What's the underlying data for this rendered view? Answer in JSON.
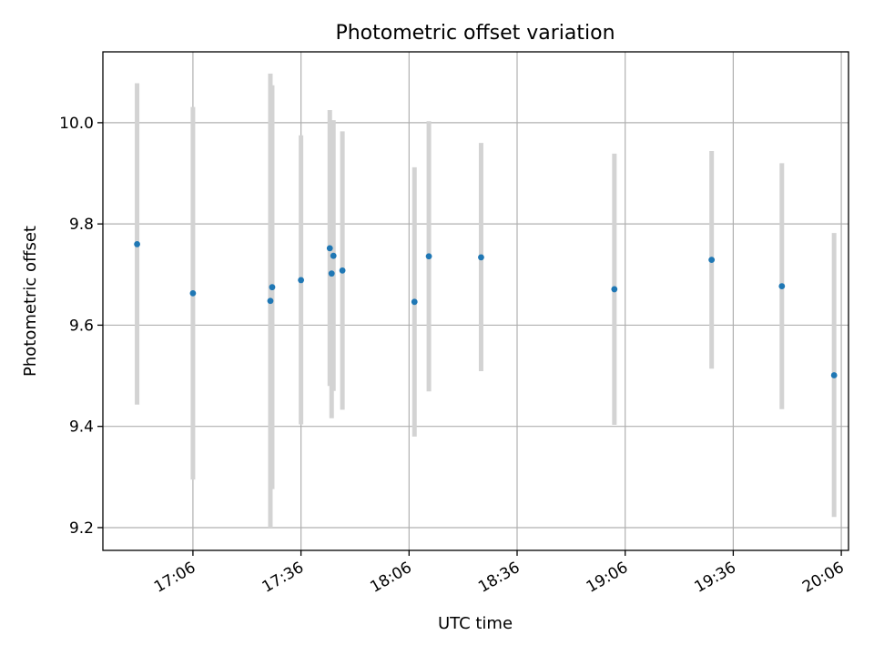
{
  "chart_data": {
    "type": "scatter",
    "title": "Photometric offset variation",
    "xlabel": "UTC time",
    "ylabel": "Photometric offset",
    "x_axis_type": "time",
    "xlim": [
      "16:41",
      "20:08"
    ],
    "ylim": [
      9.155,
      10.14
    ],
    "grid": true,
    "x_ticks": [
      "17:06",
      "17:36",
      "18:06",
      "18:36",
      "19:06",
      "19:36",
      "20:06"
    ],
    "y_ticks": [
      "9.2",
      "9.4",
      "9.6",
      "9.8",
      "10.0"
    ],
    "colors": {
      "point": "#1f77b4",
      "error_bar": "#d3d3d3",
      "grid": "#b0b0b0"
    },
    "points": [
      {
        "x": "16:50.5",
        "y": 9.76,
        "yerr_low": 9.443,
        "yerr_high": 10.078
      },
      {
        "x": "17:06.0",
        "y": 9.663,
        "yerr_low": 9.295,
        "yerr_high": 10.031
      },
      {
        "x": "17:27.5",
        "y": 9.648,
        "yerr_low": 9.2,
        "yerr_high": 10.097
      },
      {
        "x": "17:28.0",
        "y": 9.675,
        "yerr_low": 9.276,
        "yerr_high": 10.074
      },
      {
        "x": "17:36.0",
        "y": 9.689,
        "yerr_low": 9.404,
        "yerr_high": 9.975
      },
      {
        "x": "17:44.0",
        "y": 9.752,
        "yerr_low": 9.48,
        "yerr_high": 10.025
      },
      {
        "x": "17:44.5",
        "y": 9.702,
        "yerr_low": 9.416,
        "yerr_high": 9.989
      },
      {
        "x": "17:45.0",
        "y": 9.737,
        "yerr_low": 9.47,
        "yerr_high": 10.005
      },
      {
        "x": "17:47.5",
        "y": 9.708,
        "yerr_low": 9.433,
        "yerr_high": 9.983
      },
      {
        "x": "18:07.5",
        "y": 9.646,
        "yerr_low": 9.38,
        "yerr_high": 9.912
      },
      {
        "x": "18:11.5",
        "y": 9.736,
        "yerr_low": 9.469,
        "yerr_high": 10.003
      },
      {
        "x": "18:26.0",
        "y": 9.734,
        "yerr_low": 9.509,
        "yerr_high": 9.96
      },
      {
        "x": "19:03.0",
        "y": 9.671,
        "yerr_low": 9.403,
        "yerr_high": 9.939
      },
      {
        "x": "19:30.0",
        "y": 9.729,
        "yerr_low": 9.514,
        "yerr_high": 9.944
      },
      {
        "x": "19:49.5",
        "y": 9.677,
        "yerr_low": 9.434,
        "yerr_high": 9.92
      },
      {
        "x": "20:04.0",
        "y": 9.501,
        "yerr_low": 9.221,
        "yerr_high": 9.782
      }
    ]
  }
}
